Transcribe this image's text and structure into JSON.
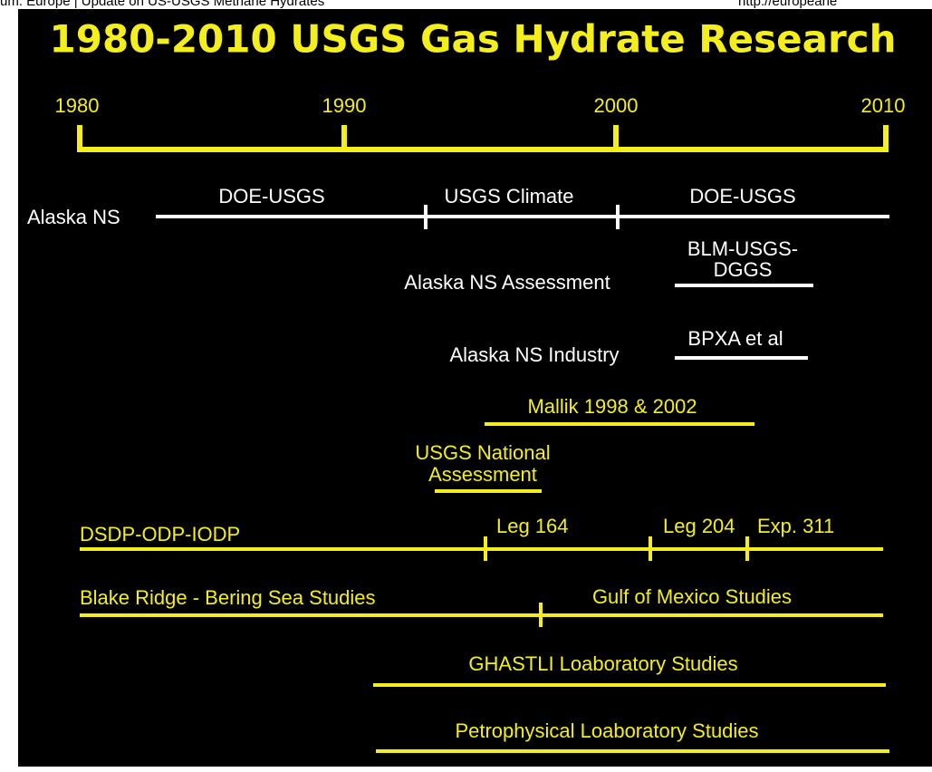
{
  "header": {
    "left": "um: Europe | Update on US-USGS Methane Hydrates",
    "right": "http://europeane"
  },
  "title": "1980-2010 USGS Gas Hydrate Research",
  "axis": {
    "years": [
      "1980",
      "1990",
      "2000",
      "2010"
    ]
  },
  "rows": [
    {
      "label": "Alaska NS",
      "segments": [
        "DOE-USGS",
        "USGS Climate",
        "DOE-USGS"
      ]
    },
    {
      "label": "Alaska NS Assessment",
      "bar_label": [
        "BLM-USGS-",
        "DGGS"
      ]
    },
    {
      "label": "Alaska NS Industry",
      "bar_label": [
        "BPXA et al"
      ]
    },
    {
      "bar_label": [
        "Mallik 1998 & 2002"
      ]
    },
    {
      "bar_label": [
        "USGS National",
        "Assessment"
      ]
    },
    {
      "label": "DSDP-ODP-IODP",
      "segments": [
        "Leg 164",
        "Leg 204",
        "Exp. 311"
      ]
    },
    {
      "label": "Blake Ridge - Bering Sea Studies",
      "segments": [
        "Gulf of Mexico Studies"
      ]
    },
    {
      "bar_label": [
        "GHASTLI Loaboratory Studies"
      ]
    },
    {
      "bar_label": [
        "Petrophysical Loaboratory Studies"
      ]
    }
  ]
}
